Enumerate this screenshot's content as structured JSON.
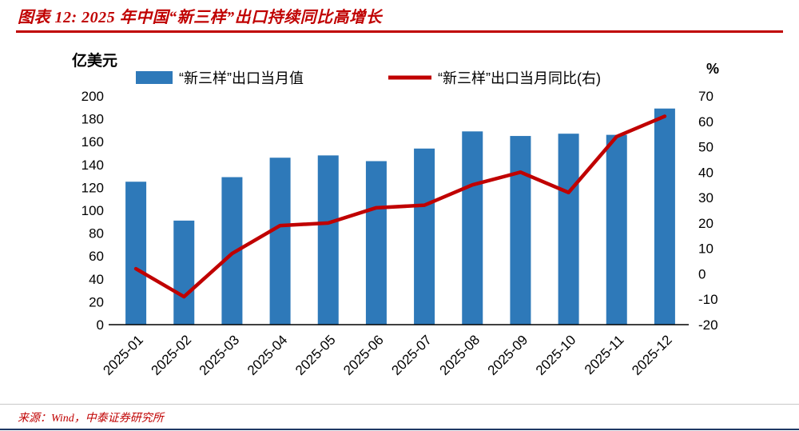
{
  "header": {
    "title": "图表 12:  2025 年中国“新三样”出口持续同比高增长"
  },
  "footer": {
    "source": "来源：Wind，中泰证券研究所"
  },
  "colors": {
    "accent_red": "#C00000",
    "bar_blue": "#2E79B9",
    "bottom_rule_navy": "#1F3864"
  },
  "chart_data": {
    "type": "bar",
    "title": "2025 年中国“新三样”出口持续同比高增长",
    "categories": [
      "2025-01",
      "2025-02",
      "2025-03",
      "2025-04",
      "2025-05",
      "2025-06",
      "2025-07",
      "2025-08",
      "2025-09",
      "2025-10",
      "2025-11",
      "2025-12"
    ],
    "series": [
      {
        "name": "“新三样”出口当月值",
        "type": "bar",
        "axis": "left",
        "color": "#2E79B9",
        "values": [
          125,
          91,
          129,
          146,
          148,
          143,
          154,
          169,
          165,
          167,
          166,
          189
        ]
      },
      {
        "name": "“新三样”出口当月同比(右)",
        "type": "line",
        "axis": "right",
        "color": "#C00000",
        "values": [
          2,
          -9,
          8,
          19,
          20,
          26,
          27,
          35,
          40,
          32,
          54,
          62
        ]
      }
    ],
    "left_axis": {
      "label": "亿美元",
      "min": 0,
      "max": 200,
      "step": 20
    },
    "right_axis": {
      "label": "%",
      "min": -20,
      "max": 70,
      "step": 10
    },
    "legend_position": "top",
    "grid": false
  }
}
